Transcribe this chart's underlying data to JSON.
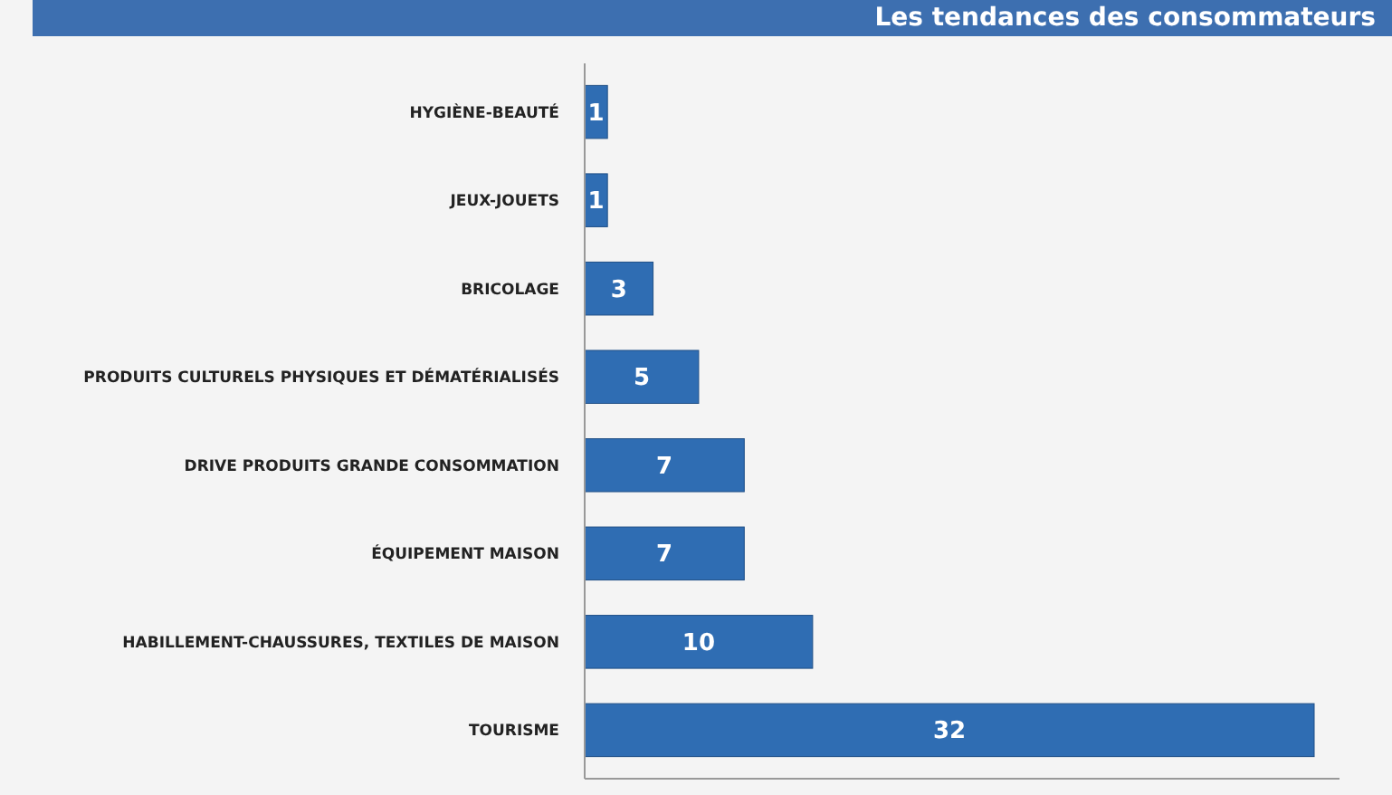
{
  "chart_data": {
    "type": "bar",
    "orientation": "horizontal",
    "title": "Les tendances des consommateurs",
    "categories": [
      "HYGIÈNE-BEAUTÉ",
      "JEUX-JOUETS",
      "BRICOLAGE",
      "PRODUITS CULTURELS PHYSIQUES ET DÉMATÉRIALISÉS",
      "DRIVE PRODUITS GRANDE CONSOMMATION",
      "ÉQUIPEMENT MAISON",
      "HABILLEMENT-CHAUSSURES, TEXTILES DE MAISON",
      "TOURISME"
    ],
    "values": [
      1,
      1,
      3,
      5,
      7,
      7,
      10,
      32
    ],
    "color": "#2f6db3",
    "data_labels": true
  }
}
